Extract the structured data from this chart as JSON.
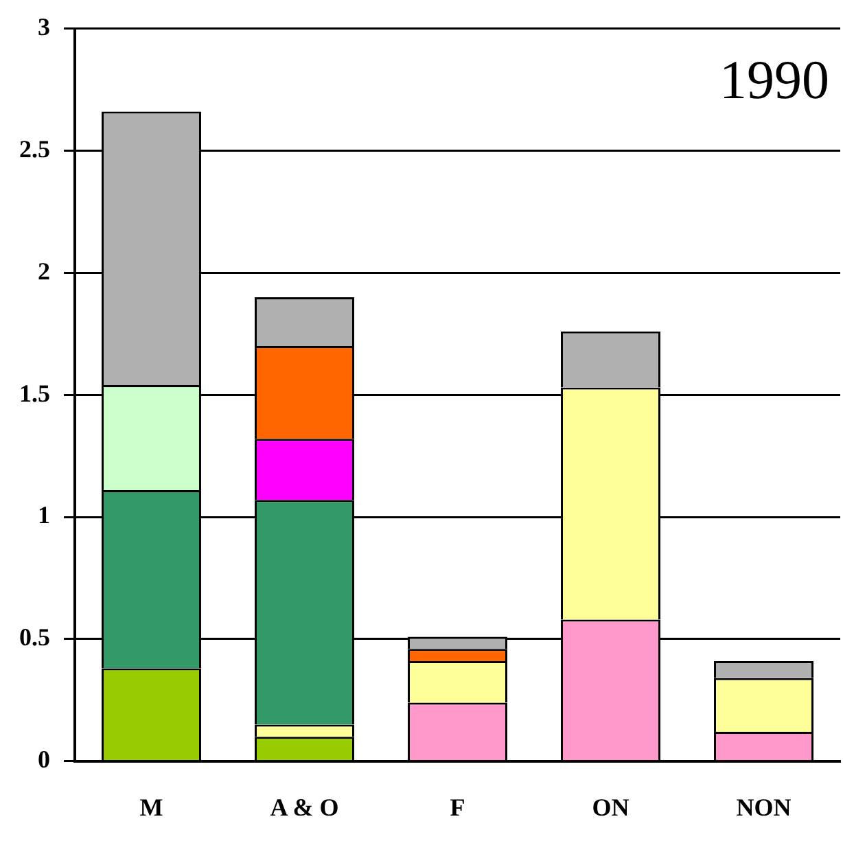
{
  "chart_data": {
    "type": "bar",
    "stacked": true,
    "categories": [
      "M",
      "A & O",
      "F",
      "ON",
      "NON"
    ],
    "series": [
      {
        "color": "#99cc00",
        "values": [
          0.38,
          0.1,
          null,
          null,
          null
        ]
      },
      {
        "color": "#ff99cc",
        "values": [
          null,
          null,
          0.24,
          0.58,
          0.12
        ]
      },
      {
        "color": "#ffff99",
        "values": [
          null,
          0.05,
          0.17,
          0.95,
          0.22
        ]
      },
      {
        "color": "#339966",
        "values": [
          0.73,
          0.92,
          null,
          null,
          null
        ]
      },
      {
        "color": "#ccffcc",
        "values": [
          0.43,
          null,
          null,
          null,
          null
        ]
      },
      {
        "color": "#ff00ff",
        "values": [
          null,
          0.25,
          null,
          null,
          null
        ]
      },
      {
        "color": "#ff6600",
        "values": [
          null,
          0.38,
          0.05,
          null,
          null
        ]
      },
      {
        "color": "#b0b0b0",
        "values": [
          1.12,
          0.2,
          0.05,
          0.23,
          0.07
        ]
      }
    ],
    "ylim": [
      0,
      3
    ],
    "yticks": [
      0,
      0.5,
      1,
      1.5,
      2,
      2.5,
      3
    ],
    "grid": "y",
    "legend": false,
    "annotations": [
      "1990"
    ]
  }
}
